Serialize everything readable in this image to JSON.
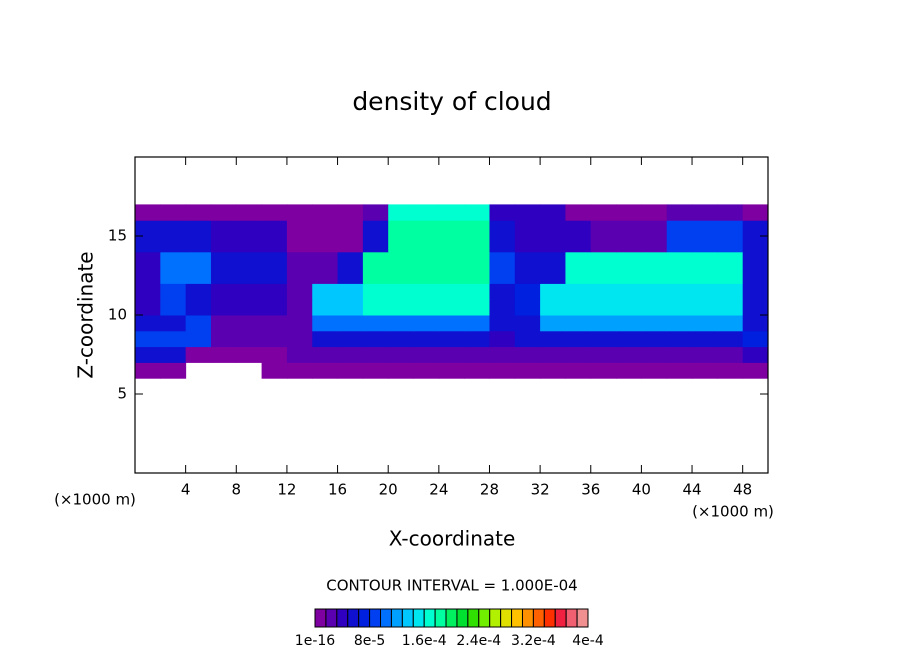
{
  "chart_data": {
    "type": "contour",
    "title": "density of cloud",
    "x_label": "X-coordinate",
    "y_label": "Z-coordinate",
    "x_unit": "(×1000 m)",
    "annotation": "CONTOUR INTERVAL = 1.000E-04",
    "xlim": [
      0,
      50
    ],
    "xticks": [
      4,
      8,
      12,
      16,
      20,
      24,
      28,
      32,
      36,
      40,
      44,
      48
    ],
    "ylim": [
      0,
      20
    ],
    "yticks": [
      5,
      10,
      15
    ],
    "x": [
      1,
      3,
      5,
      7,
      9,
      11,
      13,
      15,
      17,
      19,
      21,
      23,
      25,
      27,
      29,
      31,
      33,
      35,
      37,
      39,
      41,
      43,
      45,
      47,
      49
    ],
    "y": [
      6.5,
      7.5,
      8.5,
      9.5,
      10.5,
      11.5,
      12.5,
      13.5,
      14.5,
      15.5,
      16.5
    ],
    "z": [
      [
        1e-05,
        1e-05,
        0,
        0,
        0,
        1e-05,
        1e-05,
        1e-05,
        1e-05,
        1e-05,
        1e-05,
        1e-05,
        1e-05,
        1e-05,
        1e-05,
        1e-05,
        1e-05,
        1e-05,
        1e-05,
        1e-05,
        1e-05,
        1e-05,
        1e-05,
        1e-05,
        1e-05
      ],
      [
        6e-05,
        6e-05,
        1e-05,
        1e-05,
        1e-05,
        1e-05,
        3e-05,
        3e-05,
        3e-05,
        3e-05,
        3e-05,
        3e-05,
        3e-05,
        3e-05,
        3e-05,
        3e-05,
        3e-05,
        3e-05,
        3e-05,
        3e-05,
        3e-05,
        3e-05,
        3e-05,
        3e-05,
        4e-05
      ],
      [
        8e-05,
        8e-05,
        8e-05,
        2e-05,
        2e-05,
        2e-05,
        2e-05,
        6e-05,
        6e-05,
        6e-05,
        6e-05,
        6e-05,
        6e-05,
        6e-05,
        4e-05,
        6e-05,
        6e-05,
        6e-05,
        6e-05,
        6e-05,
        6e-05,
        6e-05,
        6e-05,
        6e-05,
        7e-05
      ],
      [
        5e-05,
        5e-05,
        9e-05,
        3e-05,
        3e-05,
        3e-05,
        3e-05,
        0.00011,
        0.00011,
        0.00011,
        0.00011,
        0.00011,
        0.00011,
        0.00011,
        5e-05,
        6e-05,
        0.00012,
        0.00012,
        0.00012,
        0.00012,
        0.00012,
        0.00012,
        0.00012,
        0.00012,
        5e-05
      ],
      [
        4e-05,
        8e-05,
        5e-05,
        4e-05,
        4e-05,
        4e-05,
        3e-05,
        0.00014,
        0.00014,
        0.00016,
        0.00016,
        0.00016,
        0.00016,
        0.00016,
        6e-05,
        7e-05,
        0.00015,
        0.00015,
        0.00015,
        0.00015,
        0.00015,
        0.00015,
        0.00015,
        0.00015,
        6e-05
      ],
      [
        4e-05,
        8e-05,
        5e-05,
        4e-05,
        4e-05,
        4e-05,
        3e-05,
        0.00014,
        0.00014,
        0.00016,
        0.00016,
        0.00016,
        0.00016,
        0.00016,
        6e-05,
        7e-05,
        0.00015,
        0.00015,
        0.00015,
        0.00015,
        0.00015,
        0.00015,
        0.00015,
        0.00015,
        6e-05
      ],
      [
        4e-05,
        0.0001,
        0.0001,
        5e-05,
        5e-05,
        5e-05,
        2e-05,
        2e-05,
        6e-05,
        0.00018,
        0.00018,
        0.00018,
        0.00018,
        0.00018,
        8e-05,
        6e-05,
        6e-05,
        0.00016,
        0.00016,
        0.00016,
        0.00016,
        0.00016,
        0.00016,
        0.00016,
        5e-05
      ],
      [
        4e-05,
        0.0001,
        0.0001,
        5e-05,
        5e-05,
        5e-05,
        2e-05,
        2e-05,
        6e-05,
        0.00018,
        0.00018,
        0.00018,
        0.00018,
        0.00018,
        8e-05,
        6e-05,
        6e-05,
        0.00016,
        0.00016,
        0.00016,
        0.00016,
        0.00016,
        0.00016,
        0.00016,
        5e-05
      ],
      [
        5e-05,
        5e-05,
        5e-05,
        4e-05,
        4e-05,
        4e-05,
        1e-05,
        1e-05,
        1e-05,
        5e-05,
        0.00018,
        0.00018,
        0.00018,
        0.00018,
        6e-05,
        4e-05,
        4e-05,
        4e-05,
        3e-05,
        3e-05,
        3e-05,
        8e-05,
        8e-05,
        8e-05,
        5e-05
      ],
      [
        5e-05,
        5e-05,
        5e-05,
        4e-05,
        4e-05,
        4e-05,
        1e-05,
        1e-05,
        1e-05,
        5e-05,
        0.00018,
        0.00018,
        0.00018,
        0.00018,
        6e-05,
        4e-05,
        4e-05,
        4e-05,
        3e-05,
        3e-05,
        3e-05,
        8e-05,
        8e-05,
        8e-05,
        5e-05
      ],
      [
        1e-05,
        1e-05,
        1e-05,
        1e-05,
        1e-05,
        1e-05,
        1e-05,
        1e-05,
        1e-05,
        3e-05,
        0.00016,
        0.00016,
        0.00016,
        0.00016,
        4e-05,
        4e-05,
        4e-05,
        1e-05,
        1e-05,
        1e-05,
        1e-05,
        3e-05,
        3e-05,
        3e-05,
        1e-05
      ]
    ],
    "colors": [
      "#7f00a0",
      "#5a00b0",
      "#3000c0",
      "#1010d0",
      "#0020e0",
      "#0040f0",
      "#0070ff",
      "#00a0ff",
      "#00c8ff",
      "#00e6f0",
      "#00ffd0",
      "#00ffa0",
      "#00f060",
      "#00e030",
      "#30e000",
      "#70f000",
      "#b0f000",
      "#e0e000",
      "#ffc000",
      "#ff9000",
      "#ff6000",
      "#ff3000",
      "#f02040",
      "#f06070",
      "#f09090"
    ],
    "clim": [
      0,
      0.0004
    ],
    "colorbar_ticks": [
      {
        "value": 1e-16,
        "label": "1e-16"
      },
      {
        "value": 8e-05,
        "label": "8e-5"
      },
      {
        "value": 0.00016,
        "label": "1.6e-4"
      },
      {
        "value": 0.00024,
        "label": "2.4e-4"
      },
      {
        "value": 0.00032,
        "label": "3.2e-4"
      },
      {
        "value": 0.0004,
        "label": "4e-4"
      }
    ]
  }
}
